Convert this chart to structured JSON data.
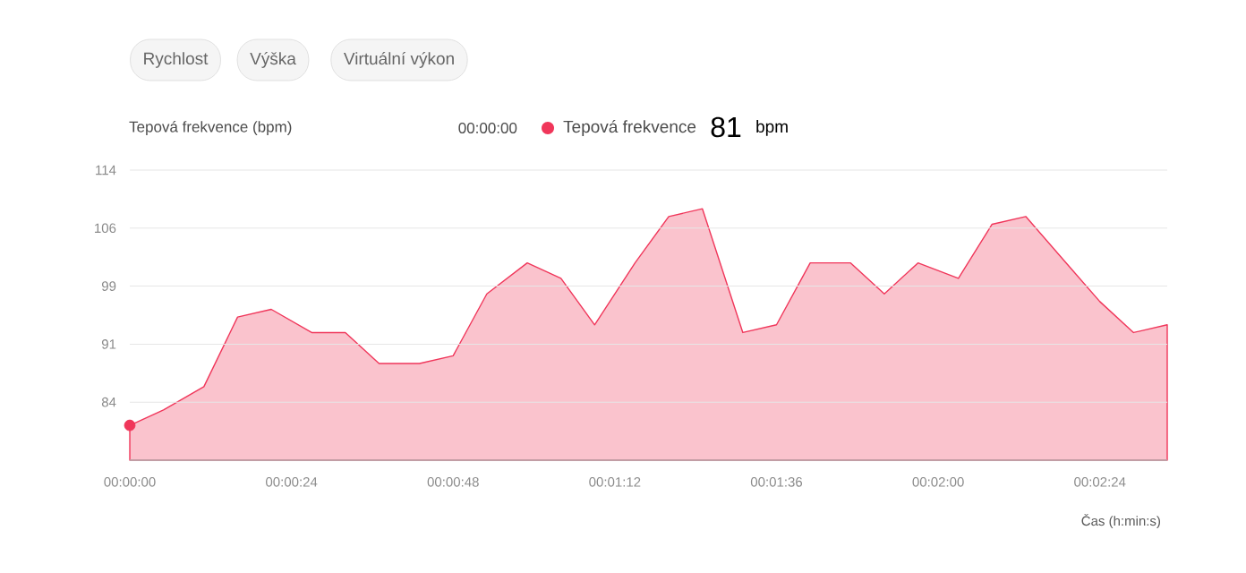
{
  "chart_data": {
    "type": "area",
    "ylabel": "Tepová frekvence (bpm)",
    "xlabel": "Čas (h:min:s)",
    "x": [
      0,
      5,
      11,
      16,
      21,
      27,
      32,
      37,
      43,
      48,
      53,
      59,
      64,
      69,
      75,
      80,
      85,
      91,
      96,
      101,
      107,
      112,
      117,
      123,
      128,
      133,
      139,
      144,
      149,
      154
    ],
    "series": [
      {
        "name": "Tepová frekvence",
        "color": "#f0365a",
        "values": [
          81,
          83,
          86,
          95,
          96,
          93,
          93,
          89,
          89,
          90,
          98,
          102,
          100,
          94,
          102,
          108,
          109,
          93,
          94,
          102,
          102,
          98,
          102,
          100,
          107,
          108,
          102,
          97,
          93,
          94
        ]
      },
      {
        "type": "scatter",
        "color": "#f0365a",
        "x": [
          0
        ],
        "values": [
          81
        ],
        "marker": "circle"
      }
    ],
    "xlim": [
      0,
      154
    ],
    "ylim": [
      76.5,
      114
    ],
    "xticks": [
      {
        "value": 0,
        "label": "00:00:00"
      },
      {
        "value": 24,
        "label": "00:00:24"
      },
      {
        "value": 48,
        "label": "00:00:48"
      },
      {
        "value": 72,
        "label": "00:01:12"
      },
      {
        "value": 96,
        "label": "00:01:36"
      },
      {
        "value": 120,
        "label": "00:02:00"
      },
      {
        "value": 144,
        "label": "00:02:24"
      }
    ],
    "yticks": [
      84,
      {
        "value": 91.5,
        "label": "91"
      },
      99,
      {
        "value": 106.5,
        "label": "106"
      },
      114
    ],
    "annotations": [
      "Rychlost",
      "Výška",
      "Virtuální výkon",
      "00:00:00",
      "81",
      "bpm"
    ],
    "grid": "y",
    "legend": "top",
    "marker": "none",
    "line_style": "solid"
  }
}
